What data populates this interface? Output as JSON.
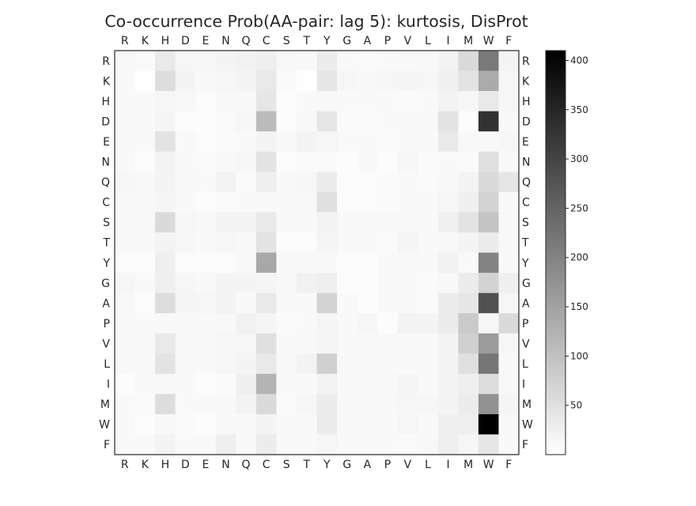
{
  "chart_data": {
    "type": "heatmap",
    "title": "Co-occurrence Prob(AA-pair: lag 5): kurtosis, DisProt",
    "rows": [
      "R",
      "K",
      "H",
      "D",
      "E",
      "N",
      "Q",
      "C",
      "S",
      "T",
      "Y",
      "G",
      "A",
      "P",
      "V",
      "L",
      "I",
      "M",
      "W",
      "F"
    ],
    "cols": [
      "R",
      "K",
      "H",
      "D",
      "E",
      "N",
      "Q",
      "C",
      "S",
      "T",
      "Y",
      "G",
      "A",
      "P",
      "V",
      "L",
      "I",
      "M",
      "W",
      "F"
    ],
    "values": [
      [
        12,
        8,
        35,
        15,
        14,
        18,
        22,
        28,
        12,
        10,
        30,
        10,
        8,
        10,
        12,
        12,
        20,
        60,
        215,
        18
      ],
      [
        10,
        2,
        55,
        18,
        12,
        14,
        18,
        35,
        8,
        2,
        40,
        14,
        12,
        14,
        16,
        14,
        24,
        45,
        135,
        15
      ],
      [
        10,
        10,
        15,
        12,
        5,
        12,
        10,
        40,
        5,
        10,
        12,
        10,
        10,
        10,
        8,
        10,
        20,
        14,
        35,
        14
      ],
      [
        10,
        10,
        16,
        6,
        5,
        8,
        14,
        110,
        5,
        12,
        40,
        8,
        8,
        10,
        12,
        10,
        45,
        5,
        330,
        10
      ],
      [
        10,
        10,
        45,
        10,
        6,
        8,
        10,
        18,
        12,
        20,
        14,
        10,
        10,
        8,
        10,
        10,
        35,
        12,
        12,
        15
      ],
      [
        10,
        5,
        20,
        10,
        8,
        10,
        14,
        45,
        6,
        8,
        8,
        5,
        10,
        5,
        14,
        8,
        10,
        8,
        50,
        10
      ],
      [
        15,
        12,
        18,
        12,
        10,
        20,
        8,
        25,
        10,
        15,
        30,
        5,
        5,
        8,
        10,
        8,
        12,
        18,
        60,
        40
      ],
      [
        10,
        12,
        16,
        10,
        5,
        8,
        10,
        10,
        10,
        12,
        50,
        5,
        5,
        8,
        10,
        10,
        14,
        25,
        70,
        10
      ],
      [
        12,
        12,
        60,
        15,
        12,
        18,
        20,
        35,
        12,
        10,
        18,
        10,
        10,
        12,
        10,
        10,
        24,
        45,
        95,
        12
      ],
      [
        12,
        12,
        18,
        15,
        10,
        14,
        12,
        45,
        5,
        5,
        16,
        10,
        10,
        8,
        16,
        10,
        12,
        18,
        30,
        12
      ],
      [
        6,
        6,
        25,
        6,
        5,
        6,
        10,
        140,
        10,
        10,
        10,
        6,
        5,
        10,
        10,
        10,
        22,
        10,
        200,
        10
      ],
      [
        14,
        10,
        25,
        15,
        12,
        18,
        18,
        16,
        12,
        22,
        25,
        5,
        5,
        10,
        10,
        8,
        12,
        30,
        70,
        25
      ],
      [
        12,
        6,
        55,
        16,
        15,
        20,
        10,
        35,
        10,
        10,
        70,
        10,
        5,
        10,
        10,
        8,
        30,
        40,
        280,
        15
      ],
      [
        12,
        10,
        12,
        12,
        10,
        12,
        22,
        16,
        8,
        10,
        16,
        10,
        14,
        5,
        20,
        18,
        30,
        85,
        14,
        60
      ],
      [
        10,
        10,
        35,
        12,
        10,
        15,
        15,
        50,
        10,
        12,
        16,
        10,
        10,
        12,
        10,
        10,
        18,
        75,
        160,
        14
      ],
      [
        12,
        10,
        45,
        12,
        10,
        14,
        18,
        35,
        12,
        20,
        75,
        10,
        10,
        10,
        10,
        10,
        18,
        50,
        220,
        12
      ],
      [
        5,
        10,
        12,
        10,
        5,
        8,
        25,
        120,
        10,
        10,
        20,
        10,
        10,
        12,
        16,
        10,
        20,
        25,
        55,
        12
      ],
      [
        10,
        8,
        55,
        10,
        10,
        12,
        20,
        60,
        8,
        15,
        30,
        12,
        12,
        12,
        15,
        14,
        18,
        30,
        175,
        16
      ],
      [
        10,
        5,
        12,
        8,
        5,
        10,
        10,
        18,
        10,
        10,
        30,
        10,
        10,
        10,
        14,
        10,
        25,
        25,
        410,
        12
      ],
      [
        10,
        10,
        20,
        10,
        10,
        25,
        10,
        30,
        10,
        10,
        15,
        10,
        10,
        10,
        8,
        12,
        25,
        15,
        40,
        10
      ]
    ],
    "colorbar": {
      "min": 0,
      "max": 410,
      "ticks": [
        50,
        100,
        150,
        200,
        250,
        300,
        350,
        400
      ]
    },
    "colormap": "greys"
  }
}
